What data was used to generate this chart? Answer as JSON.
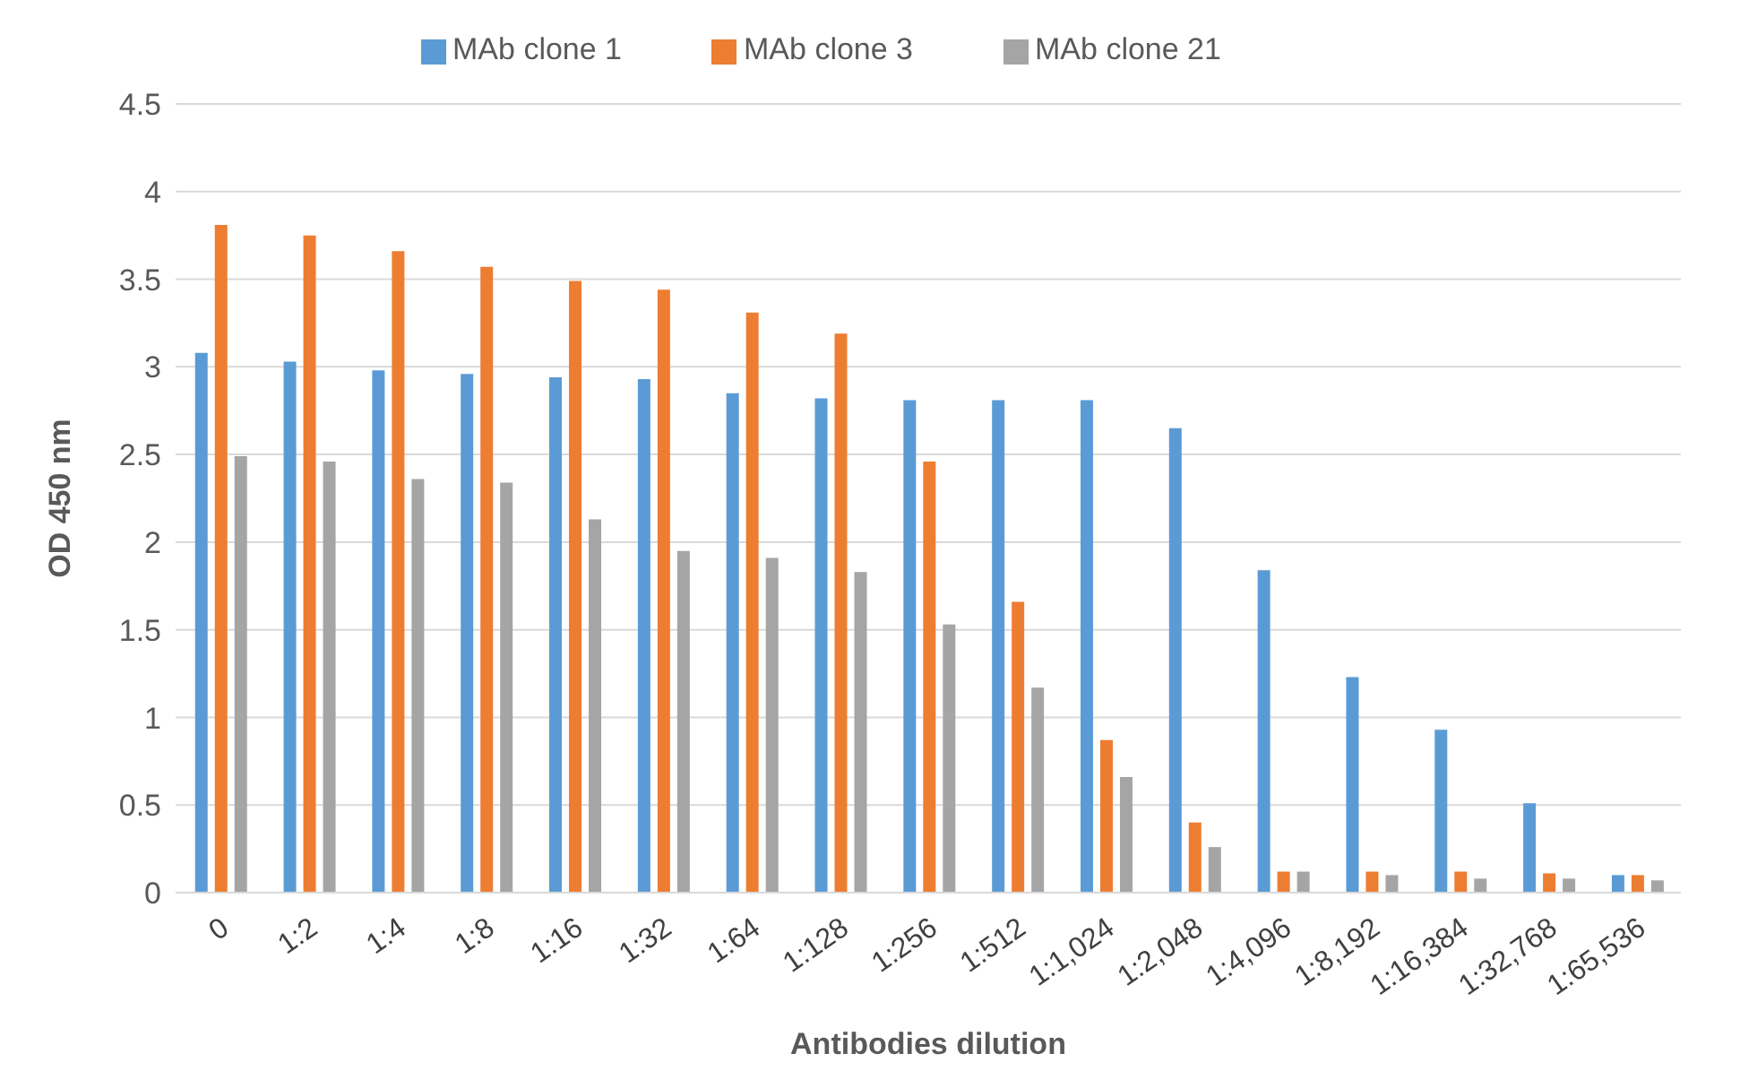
{
  "chart_data": {
    "type": "bar",
    "xlabel": "Antibodies dilution",
    "ylabel": "OD 450 nm",
    "categories": [
      "0",
      "1:2",
      "1:4",
      "1:8",
      "1:16",
      "1:32",
      "1:64",
      "1:128",
      "1:256",
      "1:512",
      "1:1,024",
      "1:2,048",
      "1:4,096",
      "1:8,192",
      "1:16,384",
      "1:32,768",
      "1:65,536"
    ],
    "series": [
      {
        "name": "MAb clone 1",
        "color": "#5b9bd5",
        "values": [
          3.08,
          3.03,
          2.98,
          2.96,
          2.94,
          2.93,
          2.85,
          2.82,
          2.81,
          2.81,
          2.81,
          2.65,
          1.84,
          1.23,
          0.93,
          0.51,
          0.1
        ]
      },
      {
        "name": "MAb clone 3",
        "color": "#ed7d31",
        "values": [
          3.81,
          3.75,
          3.66,
          3.57,
          3.49,
          3.44,
          3.31,
          3.19,
          2.46,
          1.66,
          0.87,
          0.4,
          0.12,
          0.12,
          0.12,
          0.11,
          0.1
        ]
      },
      {
        "name": "MAb clone 21",
        "color": "#a5a5a5",
        "values": [
          2.49,
          2.46,
          2.36,
          2.34,
          2.13,
          1.95,
          1.91,
          1.83,
          1.53,
          1.17,
          0.66,
          0.26,
          0.12,
          0.1,
          0.08,
          0.08,
          0.07
        ]
      }
    ],
    "ylim": [
      0,
      4.5
    ],
    "yticks": [
      0,
      0.5,
      1,
      1.5,
      2,
      2.5,
      3,
      3.5,
      4,
      4.5
    ],
    "grid": "y",
    "legend": "top"
  }
}
